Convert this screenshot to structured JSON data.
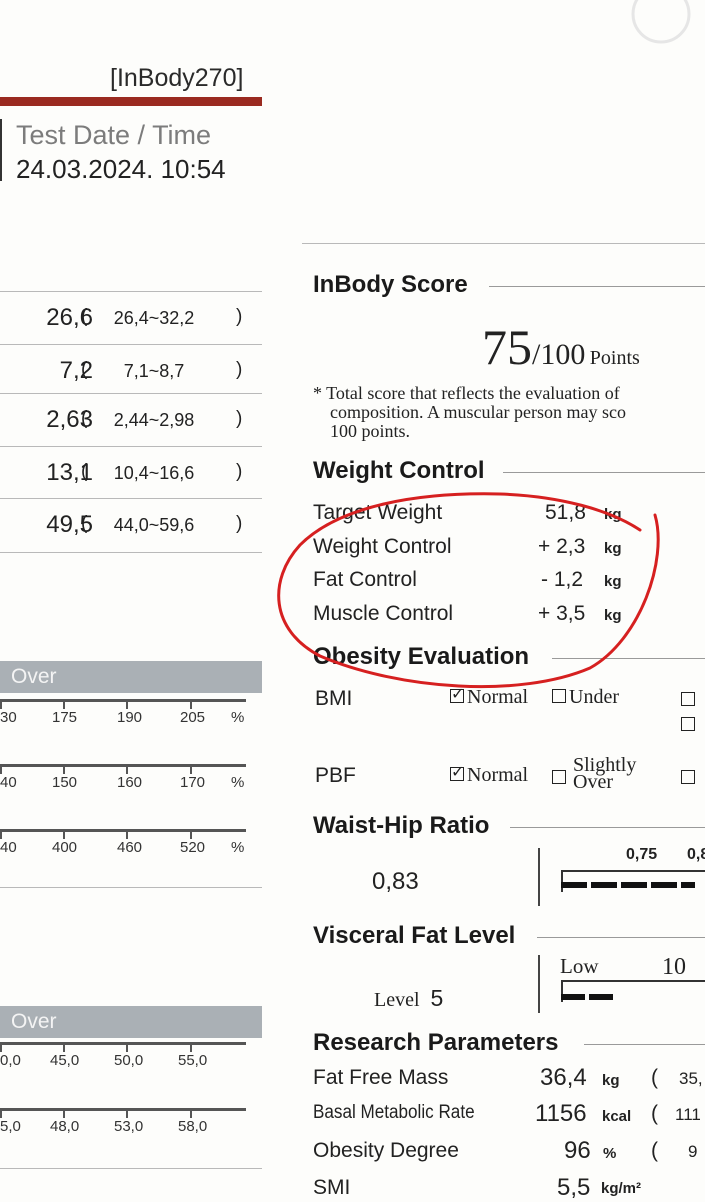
{
  "header": {
    "model": "[InBody270]",
    "test_date_label": "Test Date / Time",
    "test_date_value": "24.03.2024. 10:54"
  },
  "left_rows": [
    {
      "value": "26,6",
      "open": "(",
      "range": "26,4~32,2",
      "close": ")"
    },
    {
      "value": "7,2",
      "open": "(",
      "range": "7,1~8,7",
      "close": ")"
    },
    {
      "value": "2,63",
      "open": "(",
      "range": "2,44~2,98",
      "close": ")"
    },
    {
      "value": "13,1",
      "open": "(",
      "range": "10,4~16,6",
      "close": ")"
    },
    {
      "value": "49,5",
      "open": "(",
      "range": "44,0~59,6",
      "close": ")"
    }
  ],
  "over_label": "Over",
  "scale1": {
    "ticks": [
      "30",
      "175",
      "190",
      "205",
      "%"
    ]
  },
  "scale2": {
    "ticks": [
      "40",
      "150",
      "160",
      "170",
      "%"
    ]
  },
  "scale3": {
    "ticks": [
      "40",
      "400",
      "460",
      "520",
      "%"
    ]
  },
  "scale4": {
    "ticks": [
      "0,0",
      "45,0",
      "50,0",
      "55,0"
    ]
  },
  "scale5": {
    "ticks": [
      "5,0",
      "48,0",
      "53,0",
      "58,0"
    ]
  },
  "inbody_score": {
    "title": "InBody Score",
    "score": "75",
    "of": "/100",
    "unit": "Points",
    "note1": "* Total score that reflects the evaluation of",
    "note2": "composition. A muscular person may sco",
    "note3": "100 points."
  },
  "weight_control": {
    "title": "Weight Control",
    "rows": [
      {
        "label": "Target Weight",
        "value": "51,8",
        "unit": "kg"
      },
      {
        "label": "Weight Control",
        "value": "+ 2,3",
        "unit": "kg"
      },
      {
        "label": "Fat Control",
        "value": "- 1,2",
        "unit": "kg"
      },
      {
        "label": "Muscle Control",
        "value": "+ 3,5",
        "unit": "kg"
      }
    ]
  },
  "obesity": {
    "title": "Obesity Evaluation",
    "bmi": {
      "label": "BMI",
      "normal": "Normal",
      "under": "Under"
    },
    "pbf": {
      "label": "PBF",
      "normal": "Normal",
      "slightly1": "Slightly",
      "slightly2": "Over"
    }
  },
  "whr": {
    "title": "Waist-Hip Ratio",
    "value": "0,83",
    "tick1": "0,75",
    "tick2": "0,8"
  },
  "visceral": {
    "title": "Visceral Fat Level",
    "level_label": "Level",
    "level_value": "5",
    "low": "Low",
    "ten": "10"
  },
  "research": {
    "title": "Research Parameters",
    "rows": [
      {
        "label": "Fat Free Mass",
        "value": "36,4",
        "unit": "kg",
        "paren": "(",
        "partial": "35,"
      },
      {
        "label": "Basal Metabolic Rate",
        "value": "1156",
        "unit": "kcal",
        "paren": "(",
        "partial": "111"
      },
      {
        "label": "Obesity Degree",
        "value": "96",
        "unit": "%",
        "paren": "(",
        "partial": "9"
      },
      {
        "label": "SMI",
        "value": "5,5",
        "unit": "kg/m²",
        "paren": "",
        "partial": ""
      }
    ]
  }
}
